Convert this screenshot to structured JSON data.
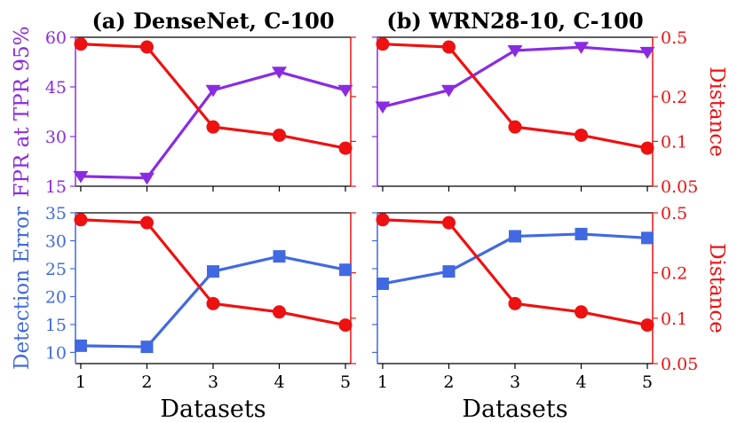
{
  "colors": {
    "purple": "#8a2be2",
    "red": "#ee1111",
    "blue": "#4169e1"
  },
  "chart_data": [
    {
      "type": "line",
      "title": "(a) DenseNet, C-100",
      "x": [
        1,
        2,
        3,
        4,
        5
      ],
      "xlabel": "",
      "x_ticks": [
        "1",
        "2",
        "3",
        "4",
        "5"
      ],
      "ylabel": "FPR at TPR 95%",
      "ylim": [
        15,
        60
      ],
      "yticks": [
        "15",
        "30",
        "45",
        "60"
      ],
      "y2label": "",
      "y2lim": [
        0.05,
        0.5
      ],
      "y2scale": "log",
      "y2ticks": [
        "0.05",
        "0.1",
        "0.2",
        "0.5"
      ],
      "series": [
        {
          "axis": "left",
          "values": [
            18,
            17.5,
            44,
            49.5,
            44
          ]
        },
        {
          "axis": "right",
          "values": [
            0.45,
            0.43,
            0.125,
            0.11,
            0.09
          ]
        }
      ]
    },
    {
      "type": "line",
      "title": "(b) WRN28-10, C-100",
      "x": [
        1,
        2,
        3,
        4,
        5
      ],
      "xlabel": "",
      "x_ticks": [
        "1",
        "2",
        "3",
        "4",
        "5"
      ],
      "ylabel": "",
      "ylim": [
        15,
        60
      ],
      "yticks": [],
      "y2label": "Distance",
      "y2lim": [
        0.05,
        0.5
      ],
      "y2scale": "log",
      "y2ticks": [
        "0.05",
        "0.1",
        "0.2",
        "0.5"
      ],
      "series": [
        {
          "axis": "left",
          "values": [
            39,
            44,
            56,
            57,
            55.5
          ]
        },
        {
          "axis": "right",
          "values": [
            0.45,
            0.43,
            0.125,
            0.11,
            0.09
          ]
        }
      ]
    },
    {
      "type": "line",
      "title": "",
      "x": [
        1,
        2,
        3,
        4,
        5
      ],
      "xlabel": "Datasets",
      "x_ticks": [
        "1",
        "2",
        "3",
        "4",
        "5"
      ],
      "ylabel": "Detection Error",
      "ylim": [
        8,
        35
      ],
      "yticks": [
        "10",
        "15",
        "20",
        "25",
        "30",
        "35"
      ],
      "y2label": "",
      "y2lim": [
        0.05,
        0.5
      ],
      "y2scale": "log",
      "y2ticks": [
        "0.05",
        "0.1",
        "0.2",
        "0.5"
      ],
      "series": [
        {
          "axis": "left",
          "values": [
            11.2,
            11,
            24.5,
            27.2,
            24.8
          ]
        },
        {
          "axis": "right",
          "values": [
            0.45,
            0.43,
            0.125,
            0.11,
            0.09
          ]
        }
      ]
    },
    {
      "type": "line",
      "title": "",
      "x": [
        1,
        2,
        3,
        4,
        5
      ],
      "xlabel": "Datasets",
      "x_ticks": [
        "1",
        "2",
        "3",
        "4",
        "5"
      ],
      "ylabel": "",
      "ylim": [
        8,
        35
      ],
      "yticks": [],
      "y2label": "Distance",
      "y2lim": [
        0.05,
        0.5
      ],
      "y2scale": "log",
      "y2ticks": [
        "0.05",
        "0.1",
        "0.2",
        "0.5"
      ],
      "series": [
        {
          "axis": "left",
          "values": [
            22.3,
            24.5,
            30.8,
            31.2,
            30.5
          ]
        },
        {
          "axis": "right",
          "values": [
            0.45,
            0.43,
            0.125,
            0.11,
            0.09
          ]
        }
      ]
    }
  ]
}
